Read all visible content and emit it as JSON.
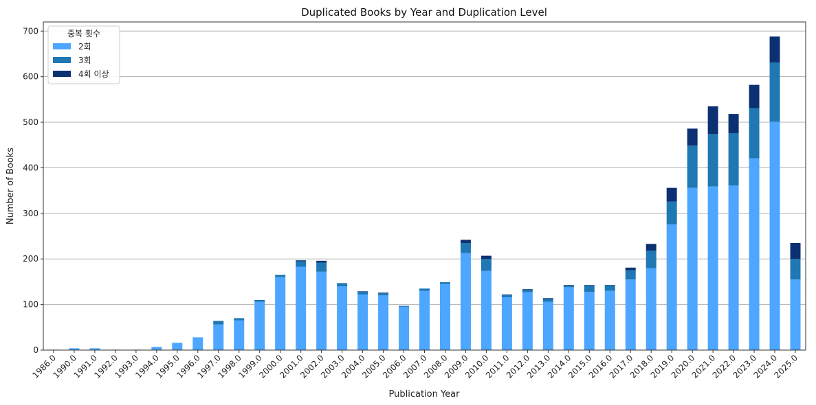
{
  "chart_data": {
    "type": "bar",
    "stacked": true,
    "title": "Duplicated Books by Year and Duplication Level",
    "xlabel": "Publication Year",
    "ylabel": "Number of Books",
    "ylim": [
      0,
      720
    ],
    "yticks": [
      0,
      100,
      200,
      300,
      400,
      500,
      600,
      700
    ],
    "grid": "y",
    "legend": {
      "title": "중복 횟수",
      "placement": "top-left"
    },
    "categories": [
      "1986.0",
      "1990.0",
      "1991.0",
      "1992.0",
      "1993.0",
      "1994.0",
      "1995.0",
      "1996.0",
      "1997.0",
      "1998.0",
      "1999.0",
      "2000.0",
      "2001.0",
      "2002.0",
      "2003.0",
      "2004.0",
      "2005.0",
      "2006.0",
      "2007.0",
      "2008.0",
      "2009.0",
      "2010.0",
      "2011.0",
      "2012.0",
      "2013.0",
      "2014.0",
      "2015.0",
      "2016.0",
      "2017.0",
      "2018.0",
      "2019.0",
      "2020.0",
      "2021.0",
      "2022.0",
      "2023.0",
      "2024.0",
      "2025.0"
    ],
    "series": [
      {
        "name": "2회",
        "color": "#4da6ff",
        "values": [
          1,
          4,
          4,
          1,
          1,
          7,
          16,
          28,
          56,
          65,
          106,
          160,
          183,
          172,
          140,
          122,
          120,
          95,
          130,
          145,
          213,
          174,
          116,
          127,
          106,
          138,
          128,
          130,
          155,
          180,
          276,
          356,
          359,
          361,
          421,
          501,
          155
        ]
      },
      {
        "name": "3회",
        "color": "#1f77b4",
        "values": [
          0,
          0,
          0,
          0,
          0,
          0,
          0,
          0,
          8,
          5,
          4,
          5,
          12,
          20,
          7,
          6,
          5,
          2,
          5,
          4,
          22,
          26,
          5,
          6,
          6,
          4,
          14,
          12,
          20,
          38,
          50,
          93,
          115,
          115,
          110,
          130,
          45
        ]
      },
      {
        "name": "4회 이상",
        "color": "#0c3172",
        "values": [
          0,
          0,
          0,
          0,
          0,
          0,
          0,
          0,
          0,
          0,
          0,
          0,
          2,
          4,
          0,
          1,
          1,
          0,
          0,
          0,
          7,
          7,
          1,
          1,
          2,
          1,
          1,
          1,
          6,
          15,
          30,
          37,
          61,
          42,
          51,
          57,
          35
        ]
      }
    ]
  }
}
